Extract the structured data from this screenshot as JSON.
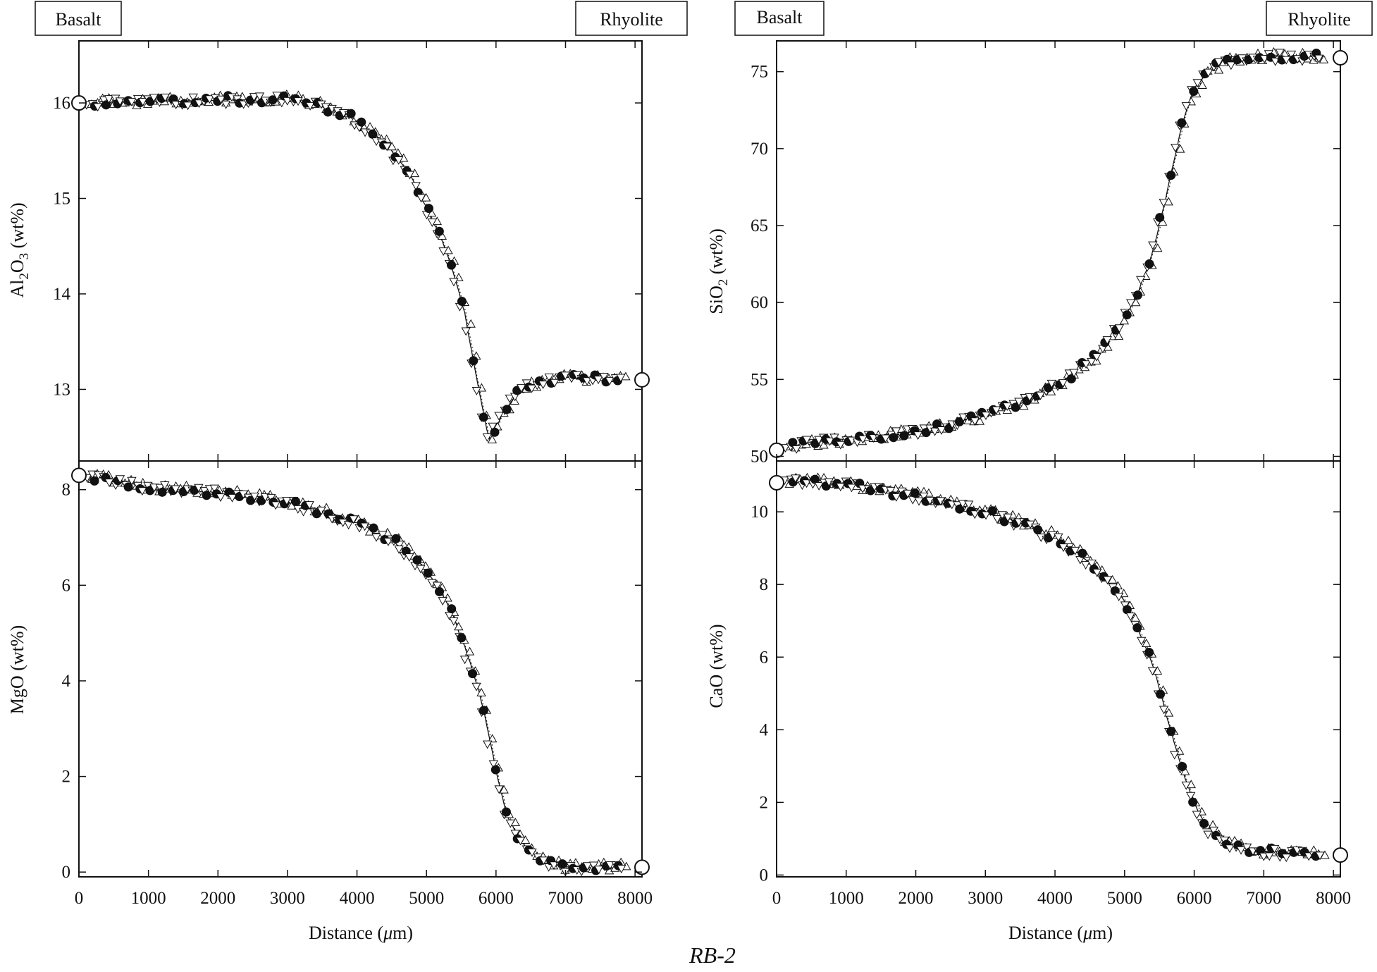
{
  "figure": {
    "caption": "RB-2",
    "colors": {
      "ink": "#111111",
      "paper": "#ffffff"
    }
  },
  "chart_data": [
    {
      "type": "scatter",
      "panel": "top-left",
      "ylabel": "Al2O3 (wt%)",
      "xlabel": "",
      "xlim": [
        0,
        8100
      ],
      "ylim": [
        12.25,
        16.65
      ],
      "xticks": [
        0,
        1000,
        2000,
        3000,
        4000,
        5000,
        6000,
        7000,
        8000
      ],
      "yticks": [
        13,
        14,
        15,
        16
      ],
      "yticklabels": [
        "13",
        "14",
        "15",
        "16"
      ],
      "end_members": {
        "left_label": "Basalt",
        "right_label": "Rhyolite",
        "left_value": 16.0,
        "right_value": 13.1
      },
      "profile": [
        [
          0,
          16.0
        ],
        [
          3000,
          16.05
        ],
        [
          3400,
          16.0
        ],
        [
          3700,
          15.9
        ],
        [
          3900,
          15.85
        ],
        [
          4200,
          15.7
        ],
        [
          4500,
          15.5
        ],
        [
          4800,
          15.2
        ],
        [
          5000,
          14.9
        ],
        [
          5200,
          14.6
        ],
        [
          5400,
          14.2
        ],
        [
          5550,
          13.8
        ],
        [
          5650,
          13.4
        ],
        [
          5750,
          13.0
        ],
        [
          5850,
          12.65
        ],
        [
          5900,
          12.45
        ],
        [
          6000,
          12.6
        ],
        [
          6100,
          12.75
        ],
        [
          6300,
          12.95
        ],
        [
          6500,
          13.05
        ],
        [
          7000,
          13.12
        ],
        [
          8000,
          13.12
        ]
      ]
    },
    {
      "type": "scatter",
      "panel": "bottom-left",
      "ylabel": "MgO (wt%)",
      "xlabel": "Distance (μm)",
      "xlim": [
        0,
        8100
      ],
      "ylim": [
        -0.1,
        8.6
      ],
      "xticks": [
        0,
        1000,
        2000,
        3000,
        4000,
        5000,
        6000,
        7000,
        8000
      ],
      "yticks": [
        0,
        2,
        4,
        6,
        8
      ],
      "yticklabels": [
        "0",
        "2",
        "4",
        "6",
        "8"
      ],
      "end_members": {
        "left_value": 8.3,
        "right_value": 0.1
      },
      "profile": [
        [
          0,
          8.3
        ],
        [
          500,
          8.2
        ],
        [
          1000,
          8.05
        ],
        [
          2000,
          7.95
        ],
        [
          3000,
          7.75
        ],
        [
          3500,
          7.55
        ],
        [
          4000,
          7.3
        ],
        [
          4500,
          6.95
        ],
        [
          4800,
          6.6
        ],
        [
          5000,
          6.3
        ],
        [
          5200,
          5.9
        ],
        [
          5400,
          5.3
        ],
        [
          5600,
          4.5
        ],
        [
          5750,
          3.8
        ],
        [
          5850,
          3.2
        ],
        [
          5950,
          2.5
        ],
        [
          6050,
          1.8
        ],
        [
          6150,
          1.2
        ],
        [
          6300,
          0.8
        ],
        [
          6500,
          0.4
        ],
        [
          6700,
          0.2
        ],
        [
          7000,
          0.1
        ],
        [
          8000,
          0.1
        ]
      ]
    },
    {
      "type": "scatter",
      "panel": "top-right",
      "ylabel": "SiO2 (wt%)",
      "xlabel": "",
      "xlim": [
        0,
        8100
      ],
      "ylim": [
        49.7,
        77.0
      ],
      "xticks": [
        0,
        1000,
        2000,
        3000,
        4000,
        5000,
        6000,
        7000,
        8000
      ],
      "yticks": [
        50,
        55,
        60,
        65,
        70,
        75
      ],
      "yticklabels": [
        "50",
        "55",
        "60",
        "65",
        "70",
        "75"
      ],
      "end_members": {
        "left_label": "Basalt",
        "right_label": "Rhyolite",
        "left_value": 50.4,
        "right_value": 75.9
      },
      "profile": [
        [
          0,
          50.5
        ],
        [
          500,
          50.9
        ],
        [
          1000,
          51.1
        ],
        [
          1500,
          51.3
        ],
        [
          2000,
          51.6
        ],
        [
          2500,
          52.1
        ],
        [
          3000,
          52.7
        ],
        [
          3500,
          53.5
        ],
        [
          4000,
          54.6
        ],
        [
          4300,
          55.5
        ],
        [
          4600,
          56.6
        ],
        [
          4800,
          57.6
        ],
        [
          5000,
          58.9
        ],
        [
          5200,
          60.7
        ],
        [
          5400,
          63.2
        ],
        [
          5550,
          66.0
        ],
        [
          5700,
          69.0
        ],
        [
          5850,
          72.0
        ],
        [
          6000,
          73.9
        ],
        [
          6200,
          75.0
        ],
        [
          6400,
          75.6
        ],
        [
          6800,
          75.9
        ],
        [
          7200,
          76.0
        ],
        [
          8000,
          75.9
        ]
      ]
    },
    {
      "type": "scatter",
      "panel": "bottom-right",
      "ylabel": "CaO (wt%)",
      "xlabel": "Distance (μm)",
      "xlim": [
        0,
        8100
      ],
      "ylim": [
        -0.05,
        11.4
      ],
      "xticks": [
        0,
        1000,
        2000,
        3000,
        4000,
        5000,
        6000,
        7000,
        8000
      ],
      "yticks": [
        0,
        2,
        4,
        6,
        8,
        10
      ],
      "yticklabels": [
        "0",
        "2",
        "4",
        "6",
        "8",
        "10"
      ],
      "end_members": {
        "left_value": 10.8,
        "right_value": 0.55
      },
      "profile": [
        [
          0,
          10.8
        ],
        [
          500,
          10.85
        ],
        [
          1000,
          10.75
        ],
        [
          1500,
          10.6
        ],
        [
          2000,
          10.45
        ],
        [
          2500,
          10.25
        ],
        [
          3000,
          10.0
        ],
        [
          3500,
          9.7
        ],
        [
          4000,
          9.3
        ],
        [
          4300,
          8.9
        ],
        [
          4600,
          8.4
        ],
        [
          4900,
          7.8
        ],
        [
          5100,
          7.2
        ],
        [
          5300,
          6.3
        ],
        [
          5450,
          5.5
        ],
        [
          5600,
          4.4
        ],
        [
          5750,
          3.4
        ],
        [
          5900,
          2.5
        ],
        [
          6050,
          1.8
        ],
        [
          6200,
          1.3
        ],
        [
          6400,
          1.0
        ],
        [
          6700,
          0.75
        ],
        [
          7000,
          0.65
        ],
        [
          7500,
          0.58
        ],
        [
          8000,
          0.55
        ]
      ]
    }
  ]
}
